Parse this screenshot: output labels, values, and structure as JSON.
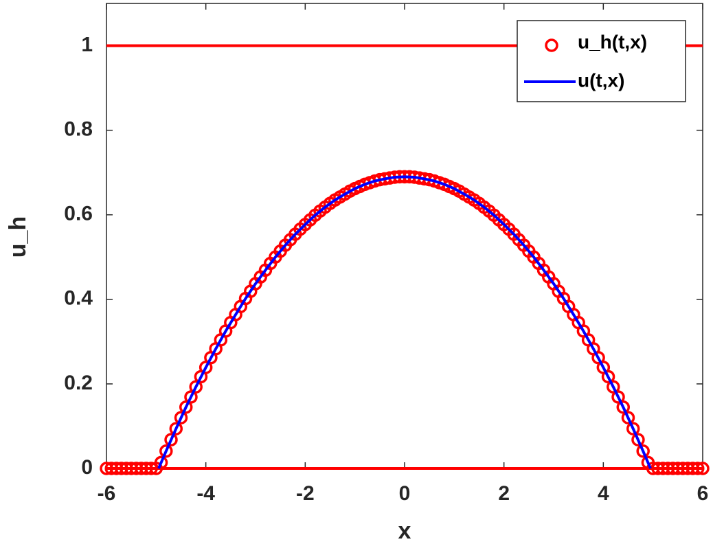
{
  "chart_data": {
    "type": "line",
    "xlabel": "x",
    "ylabel": "u_h",
    "xlim": [
      -6,
      6
    ],
    "ylim": [
      0,
      1.1
    ],
    "xticks": [
      -6,
      -4,
      -2,
      0,
      2,
      4,
      6
    ],
    "yticks": [
      0,
      0.2,
      0.4,
      0.6,
      0.8,
      1
    ],
    "hlines": [
      {
        "value": 0,
        "color": "#ff0000"
      },
      {
        "value": 1,
        "color": "#ff0000"
      }
    ],
    "legend": "upper right",
    "series": [
      {
        "name": "u_h(t,x)",
        "color": "#ff0000",
        "marker": "circle",
        "x": [
          -6,
          -5.9,
          -5.8,
          -5.7,
          -5.6,
          -5.5,
          -5.4,
          -5.3,
          -5.2,
          -5.1,
          -5,
          -4.9,
          -4.8,
          -4.7,
          -4.6,
          -4.5,
          -4.4,
          -4.3,
          -4.2,
          -4.1,
          -4,
          -3.9,
          -3.8,
          -3.7,
          -3.6,
          -3.5,
          -3.4,
          -3.3,
          -3.2,
          -3.1,
          -3,
          -2.9,
          -2.8,
          -2.7,
          -2.6,
          -2.5,
          -2.4,
          -2.3,
          -2.2,
          -2.1,
          -2,
          -1.9,
          -1.8,
          -1.7,
          -1.6,
          -1.5,
          -1.4,
          -1.3,
          -1.2,
          -1.1,
          -1,
          -0.9,
          -0.8,
          -0.7,
          -0.6,
          -0.5,
          -0.4,
          -0.3,
          -0.2,
          -0.1,
          0,
          0.1,
          0.2,
          0.3,
          0.4,
          0.5,
          0.6,
          0.7,
          0.8,
          0.9,
          1,
          1.1,
          1.2,
          1.3,
          1.4,
          1.5,
          1.6,
          1.7,
          1.8,
          1.9,
          2,
          2.1,
          2.2,
          2.3,
          2.4,
          2.5,
          2.6,
          2.7,
          2.8,
          2.9,
          3,
          3.1,
          3.2,
          3.3,
          3.4,
          3.5,
          3.6,
          3.7,
          3.8,
          3.9,
          4,
          4.1,
          4.2,
          4.3,
          4.4,
          4.5,
          4.6,
          4.7,
          4.8,
          4.9,
          5,
          5.1,
          5.2,
          5.3,
          5.4,
          5.5,
          5.6,
          5.7,
          5.8,
          5.9,
          6
        ],
        "values": [
          0,
          0,
          0,
          0,
          0,
          0,
          0,
          0,
          0,
          0,
          0,
          0.014,
          0.041,
          0.068,
          0.094,
          0.12,
          0.145,
          0.169,
          0.193,
          0.217,
          0.239,
          0.262,
          0.283,
          0.304,
          0.325,
          0.345,
          0.364,
          0.383,
          0.402,
          0.419,
          0.437,
          0.453,
          0.469,
          0.485,
          0.5,
          0.514,
          0.528,
          0.541,
          0.554,
          0.566,
          0.577,
          0.588,
          0.599,
          0.609,
          0.618,
          0.627,
          0.635,
          0.642,
          0.649,
          0.656,
          0.662,
          0.667,
          0.672,
          0.676,
          0.68,
          0.683,
          0.685,
          0.687,
          0.689,
          0.69,
          0.69,
          0.69,
          0.689,
          0.687,
          0.685,
          0.683,
          0.68,
          0.676,
          0.672,
          0.667,
          0.662,
          0.656,
          0.649,
          0.642,
          0.635,
          0.627,
          0.618,
          0.609,
          0.599,
          0.588,
          0.577,
          0.566,
          0.554,
          0.541,
          0.528,
          0.514,
          0.5,
          0.485,
          0.469,
          0.453,
          0.437,
          0.419,
          0.402,
          0.383,
          0.364,
          0.345,
          0.325,
          0.304,
          0.283,
          0.262,
          0.239,
          0.217,
          0.193,
          0.169,
          0.145,
          0.12,
          0.094,
          0.068,
          0.041,
          0.014,
          0,
          0,
          0,
          0,
          0,
          0,
          0,
          0,
          0,
          0,
          0
        ]
      },
      {
        "name": "u(t,x)",
        "color": "#0000ff",
        "marker": "line",
        "x": [
          -4.95,
          -4.8,
          -4.6,
          -4.4,
          -4.2,
          -4,
          -3.8,
          -3.6,
          -3.4,
          -3.2,
          -3,
          -2.8,
          -2.6,
          -2.4,
          -2.2,
          -2,
          -1.8,
          -1.6,
          -1.4,
          -1.2,
          -1,
          -0.8,
          -0.6,
          -0.4,
          -0.2,
          0,
          0.2,
          0.4,
          0.6,
          0.8,
          1,
          1.2,
          1.4,
          1.6,
          1.8,
          2,
          2.2,
          2.4,
          2.6,
          2.8,
          3,
          3.2,
          3.4,
          3.6,
          3.8,
          4,
          4.2,
          4.4,
          4.6,
          4.8,
          4.95
        ],
        "values": [
          0,
          0.041,
          0.094,
          0.145,
          0.193,
          0.239,
          0.283,
          0.325,
          0.364,
          0.402,
          0.437,
          0.469,
          0.5,
          0.528,
          0.554,
          0.577,
          0.599,
          0.618,
          0.635,
          0.649,
          0.662,
          0.672,
          0.68,
          0.685,
          0.689,
          0.69,
          0.689,
          0.685,
          0.68,
          0.672,
          0.662,
          0.649,
          0.635,
          0.618,
          0.599,
          0.577,
          0.554,
          0.528,
          0.5,
          0.469,
          0.437,
          0.402,
          0.364,
          0.325,
          0.283,
          0.239,
          0.193,
          0.145,
          0.094,
          0.041,
          0
        ]
      }
    ]
  }
}
